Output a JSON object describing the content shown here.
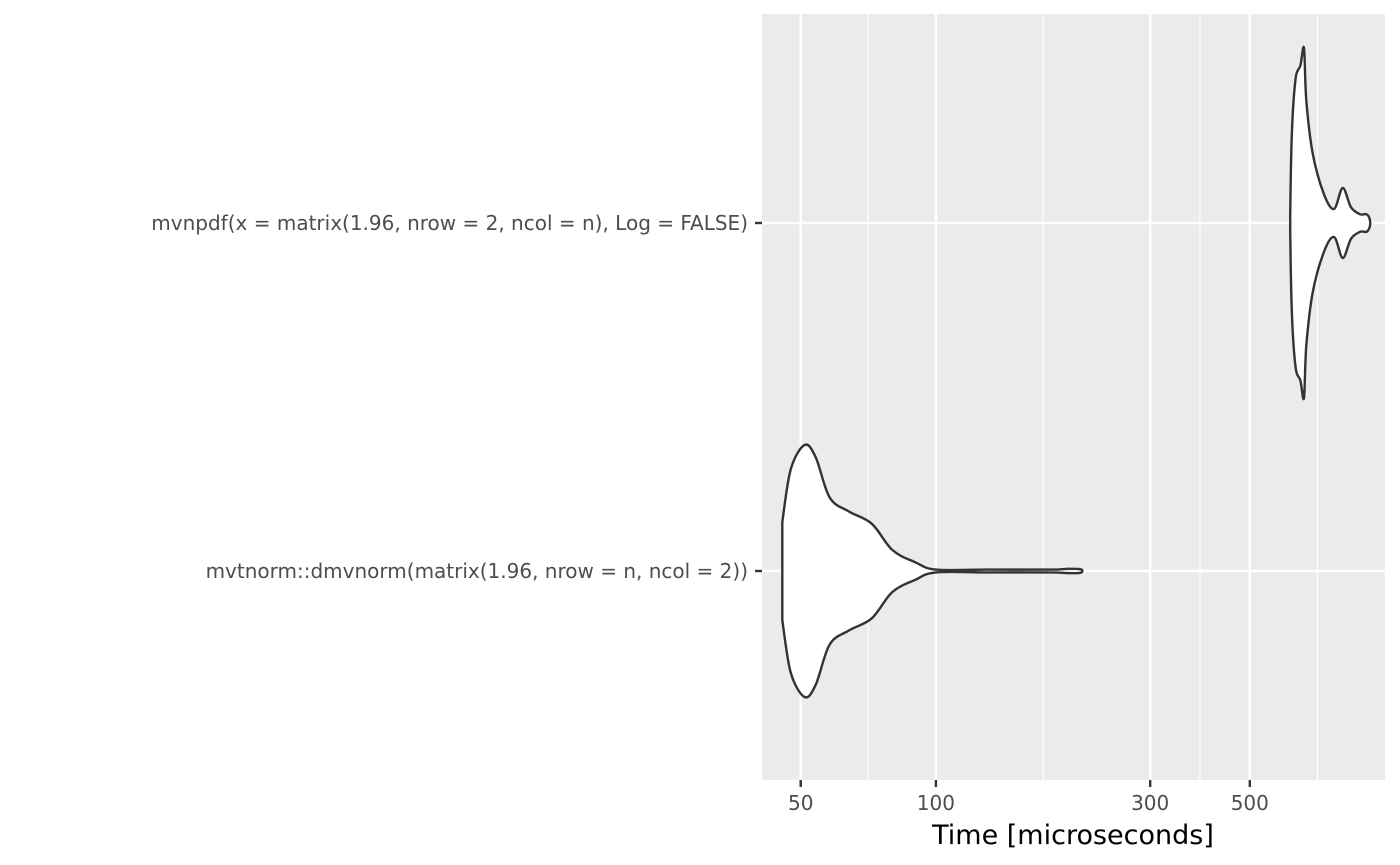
{
  "chart_data": {
    "type": "violin",
    "xlabel": "Time [microseconds]",
    "ylabel": "",
    "x_scale": "log10",
    "xlim": [
      41,
      1000
    ],
    "x_ticks": [
      50,
      100,
      300,
      500
    ],
    "x_tick_labels": [
      "50",
      "100",
      "300",
      "500"
    ],
    "x_minor_gridlines": [
      70.7,
      173.2,
      387.3,
      707.1
    ],
    "grid": true,
    "legend": "none",
    "panel_background": "#EBEBEB",
    "gridline_color": "#FFFFFF",
    "violin_fill": "#FFFFFF",
    "violin_outline": "#333333",
    "categories": [
      "mvnpdf(x = matrix(1.96, nrow = 2, ncol = n), Log = FALSE)",
      "mvtnorm::dmvnorm(matrix(1.96, nrow = n, ncol = 2))"
    ],
    "series": [
      {
        "category_index": 0,
        "min": 615,
        "max": 925,
        "density": [
          [
            615,
            0.04
          ],
          [
            620,
            0.5
          ],
          [
            632,
            0.82
          ],
          [
            648,
            0.9
          ],
          [
            660,
            1.0
          ],
          [
            668,
            0.7
          ],
          [
            690,
            0.4
          ],
          [
            730,
            0.17
          ],
          [
            770,
            0.08
          ],
          [
            805,
            0.2
          ],
          [
            840,
            0.09
          ],
          [
            880,
            0.05
          ],
          [
            910,
            0.05
          ],
          [
            925,
            0.02
          ]
        ]
      },
      {
        "category_index": 1,
        "min": 45.5,
        "max": 210,
        "density": [
          [
            45.5,
            0.28
          ],
          [
            47.5,
            0.58
          ],
          [
            51,
            0.72
          ],
          [
            54,
            0.65
          ],
          [
            58,
            0.42
          ],
          [
            64,
            0.34
          ],
          [
            72,
            0.27
          ],
          [
            80,
            0.12
          ],
          [
            90,
            0.05
          ],
          [
            100,
            0.008
          ],
          [
            130,
            0.008
          ],
          [
            180,
            0.008
          ],
          [
            195,
            0.012
          ],
          [
            210,
            0.01
          ]
        ]
      }
    ]
  }
}
